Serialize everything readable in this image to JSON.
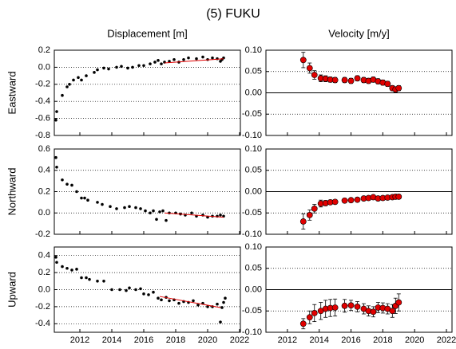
{
  "title": "(5) FUKU",
  "chart_data": [
    {
      "type": "scatter",
      "title": "Displacement [m]",
      "ylabel": "Eastward",
      "xlim": [
        2010.4,
        2022.05
      ],
      "ylim": [
        -0.8,
        0.2
      ],
      "xticks": [
        2012,
        2014,
        2016,
        2018,
        2020,
        2022
      ],
      "yticks": [
        0.2,
        {
          "value": 0,
          "label": "0.0"
        },
        -0.2,
        -0.4,
        -0.6,
        -0.8
      ],
      "grid": true,
      "series": [
        {
          "color": "#000000",
          "x": [
            2010.5,
            2010.55,
            2010.9,
            2011.2,
            2011.35,
            2011.6,
            2011.9,
            2012.1,
            2012.4,
            2012.9,
            2013.1,
            2013.5,
            2013.8,
            2014.3,
            2014.6,
            2015.0,
            2015.3,
            2015.7,
            2016.0,
            2016.4,
            2016.7,
            2016.9,
            2017.1,
            2017.3,
            2017.6,
            2017.9,
            2018.2,
            2018.5,
            2018.8,
            2019.3,
            2019.7,
            2020.0,
            2020.3,
            2020.6,
            2020.8,
            2020.9,
            2021.0
          ],
          "values": [
            -0.62,
            -0.52,
            -0.33,
            -0.23,
            -0.2,
            -0.15,
            -0.12,
            -0.15,
            -0.1,
            -0.06,
            -0.03,
            -0.01,
            -0.02,
            0.0,
            0.01,
            -0.01,
            0.0,
            0.02,
            0.02,
            0.04,
            0.06,
            0.08,
            0.04,
            0.06,
            0.07,
            0.09,
            0.06,
            0.09,
            0.11,
            0.1,
            0.12,
            0.09,
            0.11,
            0.1,
            0.07,
            0.09,
            0.11
          ]
        }
      ],
      "fit": {
        "color": "#e00000",
        "x": [
          2017.3,
          2021.0
        ],
        "values": [
          0.05,
          0.1
        ]
      }
    },
    {
      "type": "errorbar",
      "title": "Velocity [m/y]",
      "xlim": [
        2010.65,
        2022.35
      ],
      "ylim": [
        -0.1,
        0.1
      ],
      "xticks": [
        2012,
        2014,
        2016,
        2018,
        2020,
        2022
      ],
      "yticks": [
        {
          "value": 0.1,
          "label": "0.10"
        },
        0.05,
        {
          "value": 0,
          "label": "0.00"
        },
        -0.05,
        {
          "value": -0.1,
          "label": "-0.10"
        }
      ],
      "grid": true,
      "zero_line": true,
      "series": [
        {
          "color": "#e00000",
          "x": [
            2013.0,
            2013.4,
            2013.7,
            2014.1,
            2014.4,
            2014.7,
            2015.0,
            2015.6,
            2016.0,
            2016.4,
            2016.8,
            2017.1,
            2017.4,
            2017.7,
            2018.0,
            2018.3,
            2018.6,
            2018.8,
            2019.0
          ],
          "values": [
            0.077,
            0.058,
            0.042,
            0.034,
            0.033,
            0.031,
            0.03,
            0.03,
            0.028,
            0.034,
            0.03,
            0.028,
            0.031,
            0.027,
            0.024,
            0.021,
            0.011,
            0.008,
            0.011
          ],
          "errors": [
            0.018,
            0.012,
            0.01,
            0.008,
            0.007,
            0.006,
            0.006,
            0.006,
            0.006,
            0.006,
            0.006,
            0.006,
            0.006,
            0.006,
            0.006,
            0.006,
            0.006,
            0.006,
            0.006
          ]
        }
      ]
    },
    {
      "type": "scatter",
      "ylabel": "Northward",
      "xlim": [
        2010.4,
        2022.05
      ],
      "ylim": [
        -0.2,
        0.6
      ],
      "xticks": [
        2012,
        2014,
        2016,
        2018,
        2020,
        2022
      ],
      "yticks": [
        0.6,
        0.4,
        0.2,
        {
          "value": 0,
          "label": "0.0"
        },
        -0.2
      ],
      "grid": true,
      "series": [
        {
          "color": "#000000",
          "x": [
            2010.5,
            2010.55,
            2010.9,
            2011.2,
            2011.5,
            2011.8,
            2012.1,
            2012.3,
            2012.5,
            2013.1,
            2013.4,
            2013.9,
            2014.3,
            2014.8,
            2015.1,
            2015.5,
            2015.8,
            2016.1,
            2016.4,
            2016.6,
            2016.8,
            2017.0,
            2017.2,
            2017.4,
            2017.6,
            2018.0,
            2018.3,
            2018.6,
            2019.0,
            2019.3,
            2019.7,
            2020.0,
            2020.3,
            2020.6,
            2020.8,
            2021.0
          ],
          "values": [
            0.52,
            0.43,
            0.31,
            0.27,
            0.26,
            0.2,
            0.14,
            0.14,
            0.12,
            0.1,
            0.08,
            0.06,
            0.04,
            0.05,
            0.06,
            0.05,
            0.04,
            0.02,
            0.0,
            0.02,
            -0.06,
            0.01,
            0.02,
            -0.07,
            0.0,
            0.0,
            -0.01,
            -0.02,
            0.0,
            -0.03,
            -0.02,
            -0.04,
            -0.03,
            -0.03,
            -0.02,
            -0.03
          ]
        }
      ],
      "fit": {
        "color": "#e00000",
        "x": [
          2017.3,
          2021.0
        ],
        "values": [
          0.0,
          -0.04
        ]
      }
    },
    {
      "type": "errorbar",
      "xlim": [
        2010.65,
        2022.35
      ],
      "ylim": [
        -0.1,
        0.1
      ],
      "xticks": [
        2012,
        2014,
        2016,
        2018,
        2020,
        2022
      ],
      "yticks": [
        {
          "value": 0.1,
          "label": "0.10"
        },
        0.05,
        {
          "value": 0,
          "label": "0.00"
        },
        -0.05,
        {
          "value": -0.1,
          "label": "-0.10"
        }
      ],
      "grid": true,
      "zero_line": true,
      "series": [
        {
          "color": "#e00000",
          "x": [
            2013.0,
            2013.4,
            2013.7,
            2014.1,
            2014.4,
            2014.7,
            2015.0,
            2015.6,
            2016.0,
            2016.4,
            2016.8,
            2017.1,
            2017.4,
            2017.7,
            2018.0,
            2018.3,
            2018.6,
            2018.8,
            2019.0
          ],
          "values": [
            -0.07,
            -0.055,
            -0.04,
            -0.028,
            -0.027,
            -0.025,
            -0.024,
            -0.021,
            -0.02,
            -0.019,
            -0.016,
            -0.015,
            -0.013,
            -0.016,
            -0.015,
            -0.014,
            -0.013,
            -0.012,
            -0.012
          ],
          "errors": [
            0.018,
            0.012,
            0.01,
            0.008,
            0.006,
            0.005,
            0.005,
            0.005,
            0.005,
            0.005,
            0.005,
            0.005,
            0.005,
            0.005,
            0.005,
            0.005,
            0.005,
            0.005,
            0.005
          ]
        }
      ]
    },
    {
      "type": "scatter",
      "ylabel": "Upward",
      "xlim": [
        2010.4,
        2022.05
      ],
      "ylim": [
        -0.5,
        0.5
      ],
      "xticks": [
        2012,
        2014,
        2016,
        2018,
        2020,
        2022
      ],
      "yticks": [
        0.4,
        0.2,
        {
          "value": 0,
          "label": "0.0"
        },
        -0.2,
        -0.4
      ],
      "grid": true,
      "series": [
        {
          "color": "#000000",
          "x": [
            2010.5,
            2010.55,
            2010.9,
            2011.2,
            2011.5,
            2011.8,
            2012.1,
            2012.4,
            2012.6,
            2013.1,
            2013.5,
            2014.0,
            2014.5,
            2014.9,
            2015.1,
            2015.5,
            2015.8,
            2016.0,
            2016.3,
            2016.6,
            2016.9,
            2017.1,
            2017.4,
            2017.6,
            2017.9,
            2018.2,
            2018.5,
            2018.8,
            2019.1,
            2019.4,
            2019.7,
            2020.0,
            2020.3,
            2020.6,
            2020.8,
            2020.9,
            2021.0,
            2021.1
          ],
          "values": [
            0.38,
            0.32,
            0.27,
            0.25,
            0.23,
            0.24,
            0.14,
            0.14,
            0.12,
            0.1,
            0.1,
            0.0,
            0.0,
            -0.01,
            0.02,
            0.0,
            0.01,
            -0.05,
            -0.06,
            -0.03,
            -0.1,
            -0.12,
            -0.09,
            -0.13,
            -0.12,
            -0.16,
            -0.14,
            -0.15,
            -0.13,
            -0.18,
            -0.16,
            -0.2,
            -0.2,
            -0.17,
            -0.38,
            -0.21,
            -0.15,
            -0.1
          ]
        }
      ],
      "fit": {
        "color": "#e00000",
        "x": [
          2017.0,
          2020.8
        ],
        "values": [
          -0.08,
          -0.21
        ]
      }
    },
    {
      "type": "errorbar",
      "xlim": [
        2010.65,
        2022.35
      ],
      "ylim": [
        -0.1,
        0.1
      ],
      "xticks": [
        2012,
        2014,
        2016,
        2018,
        2020,
        2022
      ],
      "yticks": [
        {
          "value": 0.1,
          "label": "0.10"
        },
        0.05,
        {
          "value": 0,
          "label": "0.00"
        },
        -0.05,
        {
          "value": -0.1,
          "label": "-0.10"
        }
      ],
      "grid": true,
      "zero_line": true,
      "series": [
        {
          "color": "#e00000",
          "x": [
            2013.0,
            2013.4,
            2013.7,
            2014.1,
            2014.4,
            2014.7,
            2015.0,
            2015.6,
            2016.0,
            2016.4,
            2016.8,
            2017.1,
            2017.4,
            2017.7,
            2018.0,
            2018.3,
            2018.6,
            2018.8,
            2019.0
          ],
          "values": [
            -0.08,
            -0.065,
            -0.055,
            -0.05,
            -0.045,
            -0.043,
            -0.042,
            -0.038,
            -0.037,
            -0.04,
            -0.045,
            -0.05,
            -0.052,
            -0.042,
            -0.043,
            -0.045,
            -0.05,
            -0.038,
            -0.03
          ],
          "errors": [
            0.012,
            0.015,
            0.02,
            0.02,
            0.02,
            0.02,
            0.02,
            0.015,
            0.012,
            0.012,
            0.012,
            0.012,
            0.012,
            0.012,
            0.012,
            0.012,
            0.015,
            0.018,
            0.02
          ]
        }
      ]
    }
  ]
}
